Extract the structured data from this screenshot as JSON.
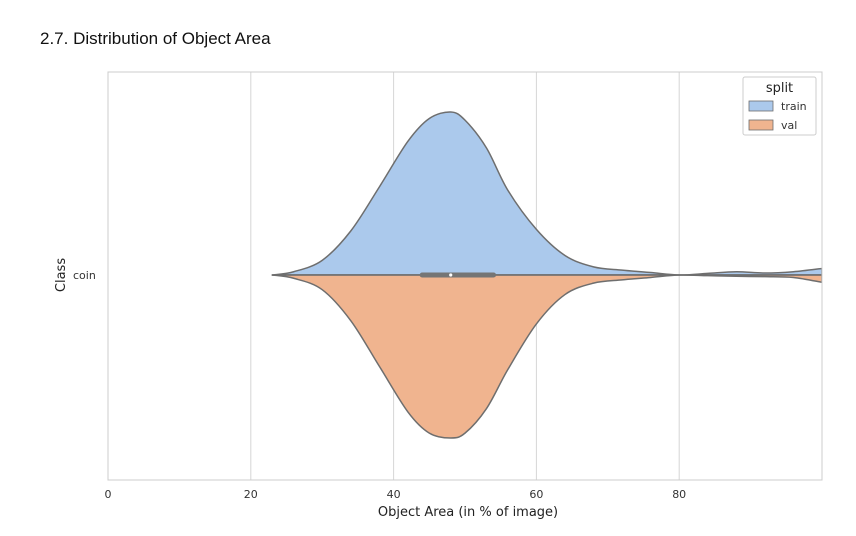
{
  "section": {
    "title": "2.7. Distribution of Object Area"
  },
  "chart_data": {
    "type": "violin",
    "title": "",
    "xlabel": "Object Area (in % of image)",
    "ylabel": "Class",
    "xlim": [
      0,
      100
    ],
    "x_ticks": [
      0,
      20,
      40,
      60,
      80
    ],
    "grid": true,
    "categories": [
      "coin"
    ],
    "legend": {
      "title": "split",
      "position": "top-right"
    },
    "series": [
      {
        "name": "train",
        "color": "#abc9ec",
        "side": "upper",
        "density": [
          [
            23,
            0
          ],
          [
            26,
            0.02
          ],
          [
            30,
            0.09
          ],
          [
            34,
            0.27
          ],
          [
            38,
            0.54
          ],
          [
            42,
            0.82
          ],
          [
            45,
            0.96
          ],
          [
            48,
            1.0
          ],
          [
            50,
            0.95
          ],
          [
            53,
            0.78
          ],
          [
            56,
            0.52
          ],
          [
            60,
            0.28
          ],
          [
            64,
            0.12
          ],
          [
            68,
            0.05
          ],
          [
            72,
            0.03
          ],
          [
            76,
            0.015
          ],
          [
            80,
            0.0
          ],
          [
            84,
            0.01
          ],
          [
            88,
            0.02
          ],
          [
            92,
            0.012
          ],
          [
            96,
            0.02
          ],
          [
            100,
            0.04
          ]
        ]
      },
      {
        "name": "val",
        "color": "#f0b48f",
        "side": "lower",
        "density": [
          [
            23,
            0
          ],
          [
            26,
            0.02
          ],
          [
            30,
            0.09
          ],
          [
            34,
            0.28
          ],
          [
            38,
            0.56
          ],
          [
            42,
            0.84
          ],
          [
            45,
            0.97
          ],
          [
            48,
            1.0
          ],
          [
            50,
            0.97
          ],
          [
            53,
            0.82
          ],
          [
            56,
            0.58
          ],
          [
            60,
            0.3
          ],
          [
            64,
            0.12
          ],
          [
            68,
            0.05
          ],
          [
            72,
            0.03
          ],
          [
            76,
            0.015
          ],
          [
            80,
            0.0
          ],
          [
            84,
            0.004
          ],
          [
            88,
            0.008
          ],
          [
            92,
            0.01
          ],
          [
            96,
            0.015
          ],
          [
            100,
            0.045
          ]
        ]
      }
    ],
    "box": {
      "q1": 44,
      "median": 48,
      "q3": 54
    },
    "colors": {
      "outline": "#6e6e6e",
      "grid": "#d6d6d6",
      "frame": "#cccccc"
    }
  }
}
